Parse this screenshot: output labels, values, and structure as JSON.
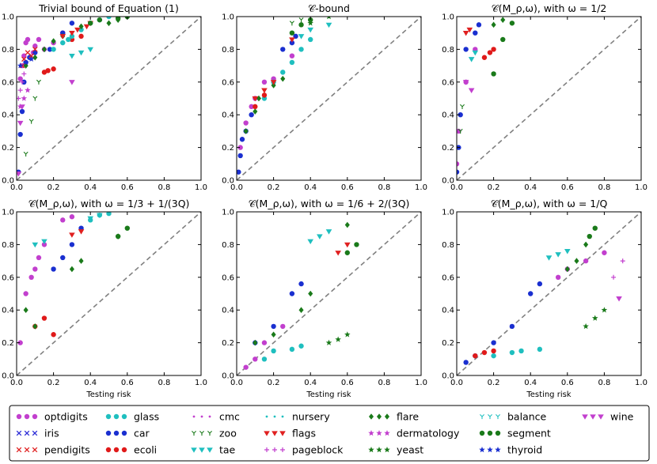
{
  "chart_data": {
    "type": "scatter",
    "xlim": [
      0,
      1
    ],
    "ylim": [
      0,
      1
    ],
    "ticks": [
      "0.0",
      "0.2",
      "0.4",
      "0.6",
      "0.8",
      "1.0"
    ],
    "grid": false,
    "diagonal": "dashed y=x",
    "legend_position": "bottom",
    "panels": [
      {
        "title": "Trivial bound of Equation (1)",
        "xlabel": ""
      },
      {
        "title": "𝒞-bound",
        "xlabel": ""
      },
      {
        "title": "𝒞(M_ρ,ω), with ω = 1/2",
        "xlabel": ""
      },
      {
        "title": "𝒞(M_ρ,ω), with ω = 1/3 + 1/(3Q)",
        "xlabel": "Testing risk"
      },
      {
        "title": "𝒞(M_ρ,ω), with ω = 1/6 + 2/(3Q)",
        "xlabel": "Testing risk"
      },
      {
        "title": "𝒞(M_ρ,ω), with ω = 1/Q",
        "xlabel": "Testing risk"
      }
    ],
    "series": [
      {
        "name": "optdigits",
        "marker": "circle",
        "color": "#c23fce"
      },
      {
        "name": "iris",
        "marker": "x",
        "color": "#2b2bd6"
      },
      {
        "name": "pendigits",
        "marker": "x",
        "color": "#e02020"
      },
      {
        "name": "glass",
        "marker": "circle",
        "color": "#1fbfbf"
      },
      {
        "name": "car",
        "marker": "circle",
        "color": "#1a2fd0"
      },
      {
        "name": "ecoli",
        "marker": "circle",
        "color": "#e01a1a"
      },
      {
        "name": "cmc",
        "marker": "dot",
        "color": "#c23fce"
      },
      {
        "name": "zoo",
        "marker": "tri_down_small",
        "color": "#1a7a1a"
      },
      {
        "name": "tae",
        "marker": "tri_down",
        "color": "#1fbfbf"
      },
      {
        "name": "nursery",
        "marker": "dot",
        "color": "#1fbfbf"
      },
      {
        "name": "flags",
        "marker": "tri_down",
        "color": "#e02020"
      },
      {
        "name": "pageblock",
        "marker": "plus",
        "color": "#c23fce"
      },
      {
        "name": "flare",
        "marker": "diamond",
        "color": "#1a7a1a"
      },
      {
        "name": "dermatology",
        "marker": "star",
        "color": "#c23fce"
      },
      {
        "name": "yeast",
        "marker": "star",
        "color": "#1a7a1a"
      },
      {
        "name": "balance",
        "marker": "tri_down_small",
        "color": "#1fbfbf"
      },
      {
        "name": "segment",
        "marker": "circle",
        "color": "#1a7a1a"
      },
      {
        "name": "thyroid",
        "marker": "star",
        "color": "#1a2fd0"
      },
      {
        "name": "wine",
        "marker": "tri_down",
        "color": "#c23fce"
      }
    ],
    "points": [
      [
        {
          "s": "optdigits",
          "x": [
            0.02,
            0.03,
            0.04,
            0.05,
            0.06,
            0.09,
            0.1,
            0.12,
            0.15,
            0.2,
            0.25
          ],
          "y": [
            0.62,
            0.7,
            0.76,
            0.84,
            0.86,
            0.78,
            0.82,
            0.86,
            0.8,
            0.84,
            0.9
          ]
        },
        {
          "s": "car",
          "x": [
            0.01,
            0.02,
            0.03,
            0.04,
            0.05,
            0.07,
            0.1,
            0.18,
            0.25,
            0.3
          ],
          "y": [
            0.05,
            0.28,
            0.42,
            0.6,
            0.72,
            0.75,
            0.78,
            0.8,
            0.9,
            0.96
          ]
        },
        {
          "s": "ecoli",
          "x": [
            0.15,
            0.17,
            0.2,
            0.3,
            0.35
          ],
          "y": [
            0.66,
            0.67,
            0.68,
            0.86,
            0.88
          ]
        },
        {
          "s": "pendigits",
          "x": [
            0.03,
            0.04,
            0.06,
            0.08,
            0.1
          ],
          "y": [
            0.7,
            0.74,
            0.78,
            0.76,
            0.8
          ]
        },
        {
          "s": "glass",
          "x": [
            0.2,
            0.25,
            0.28,
            0.3,
            0.35,
            0.4,
            0.45,
            0.5
          ],
          "y": [
            0.8,
            0.84,
            0.86,
            0.88,
            0.92,
            0.96,
            0.98,
            1.0
          ]
        },
        {
          "s": "tae",
          "x": [
            0.3,
            0.35,
            0.4
          ],
          "y": [
            0.76,
            0.78,
            0.8
          ]
        },
        {
          "s": "flare",
          "x": [
            0.05,
            0.1,
            0.15,
            0.2,
            0.25,
            0.35,
            0.5,
            0.55
          ],
          "y": [
            0.7,
            0.75,
            0.8,
            0.85,
            0.88,
            0.94,
            0.96,
            0.98
          ]
        },
        {
          "s": "zoo",
          "x": [
            0.05,
            0.08,
            0.1,
            0.12
          ],
          "y": [
            0.16,
            0.36,
            0.5,
            0.6
          ]
        },
        {
          "s": "wine",
          "x": [
            0.01,
            0.02,
            0.03,
            0.3
          ],
          "y": [
            0.04,
            0.35,
            0.45,
            0.6
          ]
        },
        {
          "s": "pageblock",
          "x": [
            0.01,
            0.02,
            0.03,
            0.04
          ],
          "y": [
            0.5,
            0.55,
            0.6,
            0.65
          ]
        },
        {
          "s": "dermatology",
          "x": [
            0.02,
            0.04,
            0.06
          ],
          "y": [
            0.45,
            0.5,
            0.55
          ]
        },
        {
          "s": "flags",
          "x": [
            0.25,
            0.3,
            0.33,
            0.38,
            0.4
          ],
          "y": [
            0.88,
            0.9,
            0.92,
            0.94,
            0.96
          ]
        },
        {
          "s": "segment",
          "x": [
            0.4,
            0.45,
            0.55,
            0.6
          ],
          "y": [
            0.96,
            0.98,
            0.99,
            1.0
          ]
        },
        {
          "s": "thyroid",
          "x": [
            0.02,
            0.05,
            0.08
          ],
          "y": [
            0.7,
            0.72,
            0.74
          ]
        }
      ],
      [
        {
          "s": "optdigits",
          "x": [
            0.02,
            0.05,
            0.08,
            0.1,
            0.15,
            0.2,
            0.3
          ],
          "y": [
            0.2,
            0.35,
            0.45,
            0.5,
            0.6,
            0.62,
            0.76
          ]
        },
        {
          "s": "car",
          "x": [
            0.01,
            0.02,
            0.03,
            0.05,
            0.08,
            0.25,
            0.3,
            0.32
          ],
          "y": [
            0.05,
            0.15,
            0.25,
            0.3,
            0.4,
            0.8,
            0.84,
            0.88
          ]
        },
        {
          "s": "glass",
          "x": [
            0.15,
            0.2,
            0.25,
            0.3,
            0.35,
            0.4
          ],
          "y": [
            0.5,
            0.6,
            0.66,
            0.72,
            0.8,
            0.86
          ]
        },
        {
          "s": "flare",
          "x": [
            0.05,
            0.1,
            0.12,
            0.15,
            0.2,
            0.25
          ],
          "y": [
            0.3,
            0.42,
            0.5,
            0.52,
            0.58,
            0.62
          ]
        },
        {
          "s": "flags",
          "x": [
            0.1,
            0.15,
            0.2,
            0.3
          ],
          "y": [
            0.5,
            0.55,
            0.6,
            0.86
          ]
        },
        {
          "s": "tae",
          "x": [
            0.35,
            0.4,
            0.5
          ],
          "y": [
            0.88,
            0.92,
            0.95
          ]
        },
        {
          "s": "ecoli",
          "x": [
            0.1,
            0.15
          ],
          "y": [
            0.45,
            0.52
          ]
        },
        {
          "s": "segment",
          "x": [
            0.3,
            0.35,
            0.4
          ],
          "y": [
            0.9,
            0.95,
            0.98
          ]
        },
        {
          "s": "yeast",
          "x": [
            0.4,
            0.5
          ],
          "y": [
            0.96,
            1.0
          ]
        },
        {
          "s": "zoo",
          "x": [
            0.3,
            0.35
          ],
          "y": [
            0.96,
            0.98
          ]
        }
      ],
      [
        {
          "s": "car",
          "x": [
            0.0,
            0.01,
            0.02,
            0.05,
            0.1,
            0.12
          ],
          "y": [
            0.05,
            0.2,
            0.4,
            0.8,
            0.9,
            0.95
          ]
        },
        {
          "s": "optdigits",
          "x": [
            0.0,
            0.01,
            0.05,
            0.1
          ],
          "y": [
            0.1,
            0.3,
            0.6,
            0.8
          ]
        },
        {
          "s": "ecoli",
          "x": [
            0.15,
            0.18,
            0.2
          ],
          "y": [
            0.75,
            0.78,
            0.8
          ]
        },
        {
          "s": "segment",
          "x": [
            0.2,
            0.25,
            0.3
          ],
          "y": [
            0.65,
            0.86,
            0.96
          ]
        },
        {
          "s": "flare",
          "x": [
            0.2,
            0.25
          ],
          "y": [
            0.95,
            0.98
          ]
        },
        {
          "s": "tae",
          "x": [
            0.08,
            0.1
          ],
          "y": [
            0.74,
            0.78
          ]
        },
        {
          "s": "wine",
          "x": [
            0.05,
            0.08
          ],
          "y": [
            0.6,
            0.55
          ]
        },
        {
          "s": "flags",
          "x": [
            0.05,
            0.07
          ],
          "y": [
            0.9,
            0.92
          ]
        },
        {
          "s": "zoo",
          "x": [
            0.02,
            0.03
          ],
          "y": [
            0.3,
            0.45
          ]
        }
      ],
      [
        {
          "s": "optdigits",
          "x": [
            0.02,
            0.05,
            0.08,
            0.1,
            0.12,
            0.15,
            0.25,
            0.3
          ],
          "y": [
            0.2,
            0.5,
            0.6,
            0.65,
            0.72,
            0.8,
            0.95,
            0.97
          ]
        },
        {
          "s": "car",
          "x": [
            0.2,
            0.25,
            0.3,
            0.35
          ],
          "y": [
            0.65,
            0.72,
            0.8,
            0.9
          ]
        },
        {
          "s": "ecoli",
          "x": [
            0.1,
            0.15,
            0.2
          ],
          "y": [
            0.3,
            0.35,
            0.25
          ]
        },
        {
          "s": "flags",
          "x": [
            0.3,
            0.35
          ],
          "y": [
            0.86,
            0.88
          ]
        },
        {
          "s": "flare",
          "x": [
            0.05,
            0.1,
            0.3,
            0.35,
            0.55
          ],
          "y": [
            0.4,
            0.3,
            0.65,
            0.7,
            0.85
          ]
        },
        {
          "s": "tae",
          "x": [
            0.1,
            0.15,
            0.4,
            0.45
          ],
          "y": [
            0.8,
            0.82,
            0.96,
            0.98
          ]
        },
        {
          "s": "glass",
          "x": [
            0.4,
            0.45,
            0.5
          ],
          "y": [
            0.95,
            0.98,
            0.99
          ]
        },
        {
          "s": "segment",
          "x": [
            0.55,
            0.6
          ],
          "y": [
            0.85,
            0.9
          ]
        }
      ],
      [
        {
          "s": "car",
          "x": [
            0.1,
            0.2,
            0.3,
            0.35
          ],
          "y": [
            0.2,
            0.3,
            0.5,
            0.56
          ]
        },
        {
          "s": "glass",
          "x": [
            0.15,
            0.2,
            0.3,
            0.35
          ],
          "y": [
            0.1,
            0.15,
            0.16,
            0.18
          ]
        },
        {
          "s": "flare",
          "x": [
            0.1,
            0.2,
            0.35,
            0.4,
            0.6
          ],
          "y": [
            0.2,
            0.25,
            0.4,
            0.5,
            0.92
          ]
        },
        {
          "s": "tae",
          "x": [
            0.4,
            0.45,
            0.5
          ],
          "y": [
            0.82,
            0.85,
            0.88
          ]
        },
        {
          "s": "flags",
          "x": [
            0.55,
            0.6
          ],
          "y": [
            0.75,
            0.8
          ]
        },
        {
          "s": "yeast",
          "x": [
            0.5,
            0.55,
            0.6
          ],
          "y": [
            0.2,
            0.22,
            0.25
          ]
        },
        {
          "s": "segment",
          "x": [
            0.6,
            0.65
          ],
          "y": [
            0.75,
            0.8
          ]
        },
        {
          "s": "optdigits",
          "x": [
            0.05,
            0.1,
            0.15,
            0.25
          ],
          "y": [
            0.05,
            0.1,
            0.2,
            0.3
          ]
        }
      ],
      [
        {
          "s": "car",
          "x": [
            0.05,
            0.1,
            0.2,
            0.3,
            0.4,
            0.45
          ],
          "y": [
            0.08,
            0.12,
            0.2,
            0.3,
            0.5,
            0.56
          ]
        },
        {
          "s": "glass",
          "x": [
            0.2,
            0.3,
            0.35,
            0.45
          ],
          "y": [
            0.12,
            0.14,
            0.15,
            0.16
          ]
        },
        {
          "s": "tae",
          "x": [
            0.5,
            0.55,
            0.6
          ],
          "y": [
            0.72,
            0.74,
            0.76
          ]
        },
        {
          "s": "ecoli",
          "x": [
            0.1,
            0.15,
            0.2
          ],
          "y": [
            0.12,
            0.14,
            0.15
          ]
        },
        {
          "s": "optdigits",
          "x": [
            0.55,
            0.6,
            0.7,
            0.8
          ],
          "y": [
            0.6,
            0.65,
            0.7,
            0.75
          ]
        },
        {
          "s": "flare",
          "x": [
            0.6,
            0.65,
            0.7
          ],
          "y": [
            0.65,
            0.7,
            0.8
          ]
        },
        {
          "s": "yeast",
          "x": [
            0.7,
            0.75,
            0.8
          ],
          "y": [
            0.3,
            0.35,
            0.4
          ]
        },
        {
          "s": "segment",
          "x": [
            0.72,
            0.75
          ],
          "y": [
            0.85,
            0.9
          ]
        },
        {
          "s": "pageblock",
          "x": [
            0.85,
            0.9
          ],
          "y": [
            0.6,
            0.7
          ]
        },
        {
          "s": "wine",
          "x": [
            0.88
          ],
          "y": [
            0.47
          ]
        }
      ]
    ]
  },
  "legend": {
    "items": [
      "optdigits",
      "iris",
      "pendigits",
      "glass",
      "car",
      "ecoli",
      "cmc",
      "zoo",
      "tae",
      "nursery",
      "flags",
      "pageblock",
      "flare",
      "dermatology",
      "yeast",
      "balance",
      "segment",
      "thyroid",
      "wine"
    ]
  }
}
